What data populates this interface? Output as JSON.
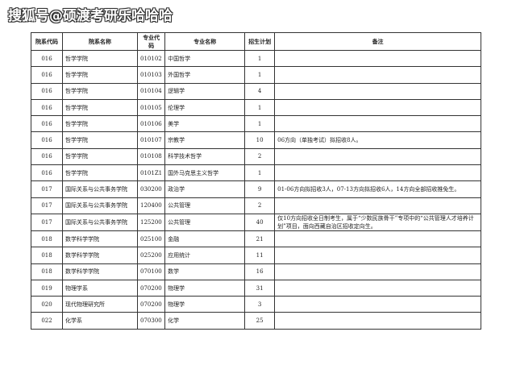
{
  "watermark": "搜狐号@硕渡考研乐哈哈哈",
  "table": {
    "headers": [
      "院系代码",
      "院系名称",
      "专业代码",
      "专业名称",
      "招生计划",
      "备注"
    ],
    "rows": [
      [
        "016",
        "哲学学院",
        "010102",
        "中国哲学",
        "1",
        ""
      ],
      [
        "016",
        "哲学学院",
        "010103",
        "外国哲学",
        "1",
        ""
      ],
      [
        "016",
        "哲学学院",
        "010104",
        "逻辑学",
        "4",
        ""
      ],
      [
        "016",
        "哲学学院",
        "010105",
        "伦理学",
        "1",
        ""
      ],
      [
        "016",
        "哲学学院",
        "010106",
        "美学",
        "1",
        ""
      ],
      [
        "016",
        "哲学学院",
        "010107",
        "宗教学",
        "10",
        "06方向（单独考试）拟招收8人。"
      ],
      [
        "016",
        "哲学学院",
        "010108",
        "科学技术哲学",
        "2",
        ""
      ],
      [
        "016",
        "哲学学院",
        "0101Z1",
        "国外马克思主义哲学",
        "1",
        ""
      ],
      [
        "017",
        "国际关系与公共事务学院",
        "030200",
        "政治学",
        "9",
        "01-06方向拟招收3人，07-13方向拟招收6人，14方向全部招收推免生。"
      ],
      [
        "017",
        "国际关系与公共事务学院",
        "120400",
        "公共管理",
        "2",
        ""
      ],
      [
        "017",
        "国际关系与公共事务学院",
        "125200",
        "公共管理",
        "40",
        "仅10方向招收全日制考生，属于“少数民族骨干”专项中的“公共管理人才培养计划”项目，面向西藏自治区招收定向生。"
      ],
      [
        "018",
        "数学科学学院",
        "025100",
        "金融",
        "21",
        ""
      ],
      [
        "018",
        "数学科学学院",
        "025200",
        "应用统计",
        "11",
        ""
      ],
      [
        "018",
        "数学科学学院",
        "070100",
        "数学",
        "16",
        ""
      ],
      [
        "019",
        "物理学系",
        "070200",
        "物理学",
        "31",
        ""
      ],
      [
        "020",
        "现代物理研究所",
        "070200",
        "物理学",
        "3",
        ""
      ],
      [
        "022",
        "化学系",
        "070300",
        "化学",
        "25",
        ""
      ]
    ]
  }
}
